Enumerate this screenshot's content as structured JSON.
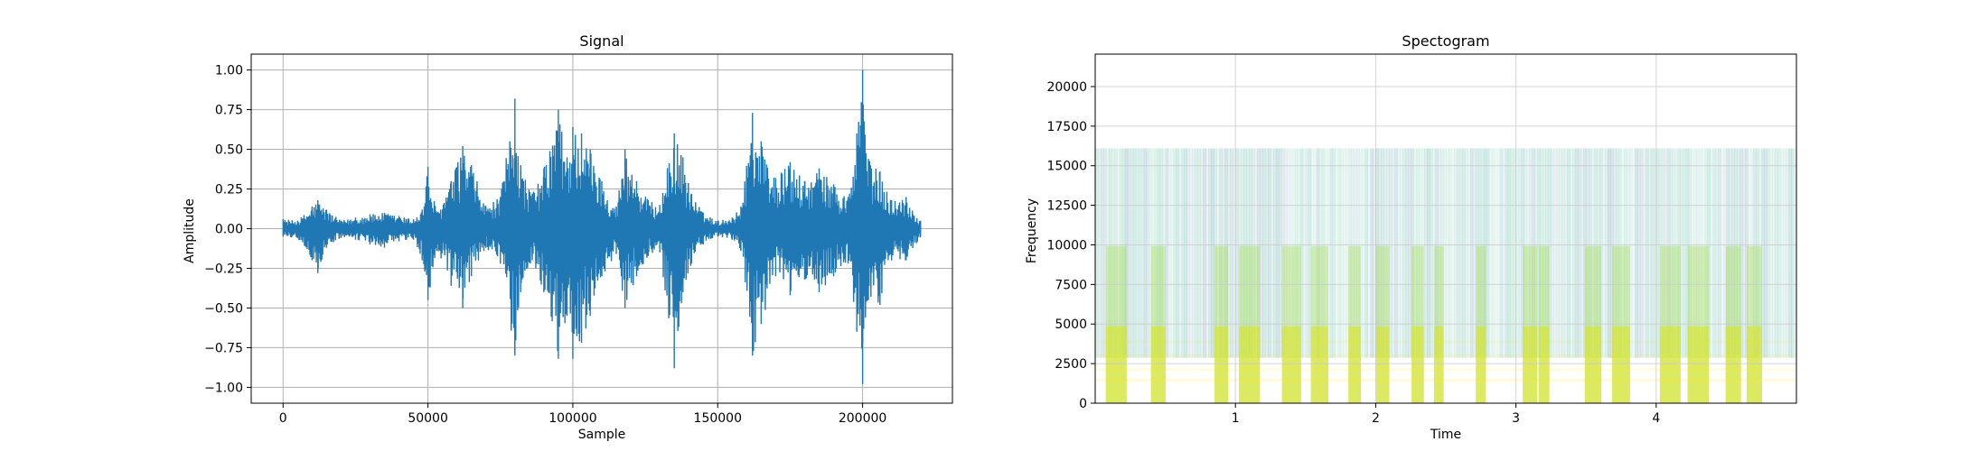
{
  "chart_data": [
    {
      "type": "line",
      "title": "Signal",
      "xlabel": "Sample",
      "ylabel": "Amplitude",
      "xlim": [
        -11000,
        231000
      ],
      "ylim": [
        -1.1,
        1.1
      ],
      "xticks": [
        0,
        50000,
        100000,
        150000,
        200000
      ],
      "yticks": [
        -1.0,
        -0.75,
        -0.5,
        -0.25,
        0.0,
        0.25,
        0.5,
        0.75,
        1.0
      ],
      "xtick_labels": [
        "0",
        "50000",
        "100000",
        "150000",
        "200000"
      ],
      "ytick_labels": [
        "−1.00",
        "−0.75",
        "−0.50",
        "−0.25",
        "0.00",
        "0.25",
        "0.50",
        "0.75",
        "1.00"
      ],
      "grid": true,
      "color": "#1f77b4",
      "series": [
        {
          "x": [
            0,
            5000,
            10000,
            12000,
            15000,
            20000,
            25000,
            30000,
            35000,
            40000,
            45000,
            48000,
            50000,
            53000,
            58000,
            62000,
            65000,
            70000,
            75000,
            80000,
            82000,
            86000,
            90000,
            95000,
            98000,
            100000,
            103000,
            106000,
            110000,
            115000,
            118000,
            122000,
            126000,
            130000,
            135000,
            138000,
            141000,
            145000,
            150000,
            155000,
            158000,
            162000,
            165000,
            170000,
            175000,
            180000,
            185000,
            190000,
            195000,
            198000,
            200000,
            202000,
            206000,
            210000,
            215000,
            220000
          ],
          "y_upper": [
            0.06,
            0.05,
            0.14,
            0.18,
            0.12,
            0.05,
            0.07,
            0.09,
            0.1,
            0.08,
            0.06,
            0.12,
            0.39,
            0.1,
            0.3,
            0.52,
            0.4,
            0.14,
            0.2,
            0.82,
            0.4,
            0.22,
            0.38,
            0.75,
            0.45,
            0.64,
            0.6,
            0.5,
            0.3,
            0.14,
            0.5,
            0.3,
            0.18,
            0.15,
            0.6,
            0.45,
            0.22,
            0.1,
            0.05,
            0.07,
            0.14,
            0.73,
            0.55,
            0.32,
            0.42,
            0.3,
            0.38,
            0.28,
            0.2,
            0.6,
            1.0,
            0.44,
            0.36,
            0.18,
            0.2,
            0.05
          ],
          "y_lower": [
            -0.05,
            -0.06,
            -0.2,
            -0.28,
            -0.12,
            -0.06,
            -0.07,
            -0.1,
            -0.12,
            -0.08,
            -0.07,
            -0.2,
            -0.45,
            -0.14,
            -0.36,
            -0.5,
            -0.3,
            -0.12,
            -0.22,
            -0.8,
            -0.4,
            -0.2,
            -0.4,
            -0.82,
            -0.55,
            -0.82,
            -0.72,
            -0.55,
            -0.3,
            -0.16,
            -0.5,
            -0.3,
            -0.17,
            -0.15,
            -0.88,
            -0.4,
            -0.22,
            -0.1,
            -0.05,
            -0.07,
            -0.14,
            -0.8,
            -0.6,
            -0.3,
            -0.42,
            -0.32,
            -0.4,
            -0.3,
            -0.22,
            -0.65,
            -0.98,
            -0.45,
            -0.48,
            -0.2,
            -0.2,
            -0.05
          ]
        }
      ]
    },
    {
      "type": "heatmap",
      "title": "Spectogram",
      "xlabel": "Time",
      "ylabel": "Frequency",
      "xlim": [
        0,
        5
      ],
      "ylim": [
        0,
        22050
      ],
      "xticks": [
        1,
        2,
        3,
        4
      ],
      "yticks": [
        0,
        2500,
        5000,
        7500,
        10000,
        12500,
        15000,
        17500,
        20000
      ],
      "xtick_labels": [
        "1",
        "2",
        "3",
        "4"
      ],
      "ytick_labels": [
        "0",
        "2500",
        "5000",
        "7500",
        "10000",
        "12500",
        "15000",
        "17500",
        "20000"
      ],
      "grid": true,
      "colormap": "viridis",
      "active_times": [
        0.15,
        0.45,
        0.9,
        1.1,
        1.4,
        1.6,
        1.85,
        2.05,
        2.3,
        2.45,
        2.75,
        3.1,
        3.2,
        3.55,
        3.75,
        4.1,
        4.3,
        4.55,
        4.7
      ]
    }
  ]
}
